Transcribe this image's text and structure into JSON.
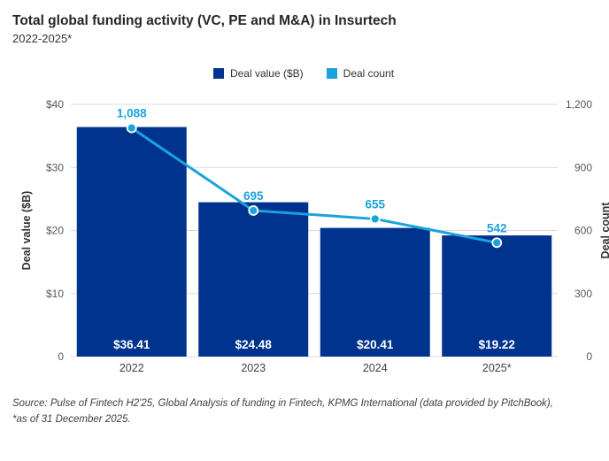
{
  "header": {
    "title": "Total global funding activity (VC, PE and M&A) in Insurtech",
    "subtitle": "2022-2025*"
  },
  "chart_data": {
    "type": "bar+line",
    "categories": [
      "2022",
      "2023",
      "2024",
      "2025*"
    ],
    "series": [
      {
        "name": "Deal value ($B)",
        "type": "bar",
        "axis": "left",
        "values": [
          36.41,
          24.48,
          20.41,
          19.22
        ],
        "labels": [
          "$36.41",
          "$24.48",
          "$20.41",
          "$19.22"
        ],
        "color": "#00338D"
      },
      {
        "name": "Deal count",
        "type": "line",
        "axis": "right",
        "values": [
          1088,
          695,
          655,
          542
        ],
        "labels": [
          "1,088",
          "695",
          "655",
          "542"
        ],
        "color": "#1AA3DC"
      }
    ],
    "left_axis": {
      "title": "Deal value ($B)",
      "max": 40,
      "ticks": [
        0,
        10,
        20,
        30,
        40
      ],
      "tick_labels": [
        "0",
        "$10",
        "$20",
        "$30",
        "$40"
      ]
    },
    "right_axis": {
      "title": "Deal count",
      "max": 1200,
      "ticks": [
        0,
        300,
        600,
        900,
        1200
      ],
      "tick_labels": [
        "0",
        "300",
        "600",
        "900",
        "1,200"
      ]
    },
    "grid": true,
    "legend_position": "top-center"
  },
  "footer": {
    "source": "Source: Pulse of Fintech H2'25, Global Analysis of funding in Fintech, KPMG International (data provided by PitchBook), *as of 31 December 2025."
  }
}
